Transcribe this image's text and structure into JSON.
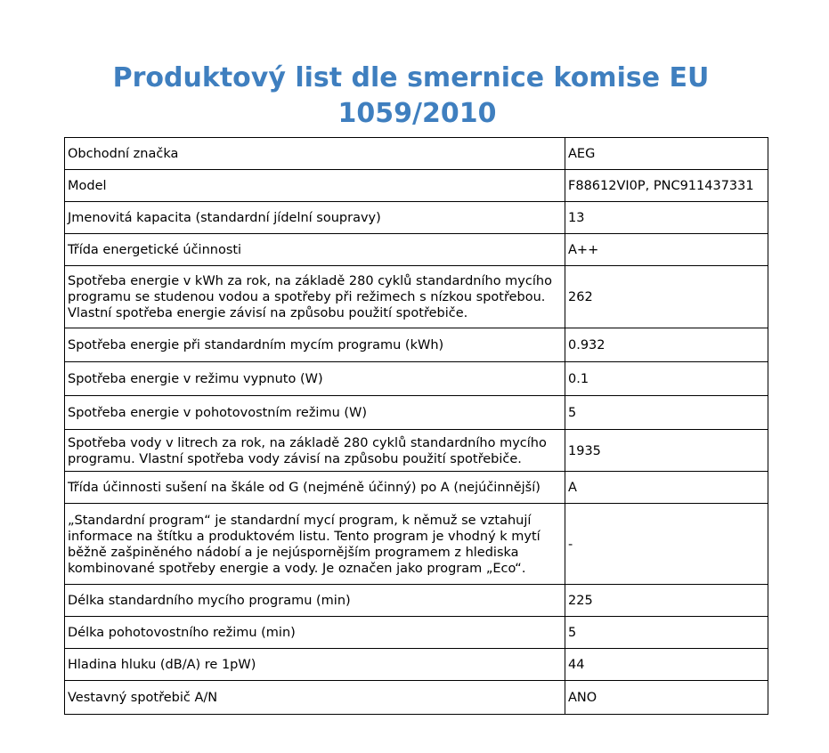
{
  "title": {
    "line1": "Produktový list dle smernice komise EU",
    "line2": "1059/2010"
  },
  "rows": [
    {
      "label": "Obchodní značka",
      "value": "AEG"
    },
    {
      "label": "Model",
      "value": "F88612VI0P, PNC911437331"
    },
    {
      "label": "Jmenovitá kapacita (standardní jídelní soupravy)",
      "value": "13"
    },
    {
      "label": "Třída energetické účinnosti",
      "value": "A++"
    },
    {
      "label": "Spotřeba energie v kWh za rok, na základě 280 cyklů standardního mycího programu se studenou vodou a spotřeby při režimech s nízkou spotřebou. Vlastní spotřeba energie závisí na způsobu použití spotřebiče.",
      "value": "262"
    },
    {
      "label": "Spotřeba energie při standardním mycím programu (kWh)",
      "value": "0.932"
    },
    {
      "label": "Spotřeba energie v režimu vypnuto (W)",
      "value": "0.1"
    },
    {
      "label": "Spotřeba energie v pohotovostním režimu (W)",
      "value": "5"
    },
    {
      "label": "Spotřeba vody v litrech za rok, na základě 280 cyklů standardního mycího programu. Vlastní spotřeba vody závisí na způsobu použití spotřebiče.",
      "value": "1935"
    },
    {
      "label": "Třída účinnosti sušení na škále od G (nejméně účinný) po A (nejúčinnější)",
      "value": "A"
    },
    {
      "label": "„Standardní program“ je standardní mycí program, k němuž se vztahují informace na štítku a produktovém listu. Tento program je vhodný k mytí běžně zašpiněného nádobí a je nejúspornějším programem z hlediska kombinované spotřeby energie a vody.  Je označen jako program „Eco“.",
      "value": "-"
    },
    {
      "label": "Délka standardního mycího programu (min)",
      "value": "225"
    },
    {
      "label": "Délka pohotovostního režimu (min)",
      "value": "5"
    },
    {
      "label": "Hladina hluku (dB/A) re 1pW)",
      "value": "44"
    },
    {
      "label": "Vestavný spotřebič A/N",
      "value": "ANO"
    }
  ]
}
